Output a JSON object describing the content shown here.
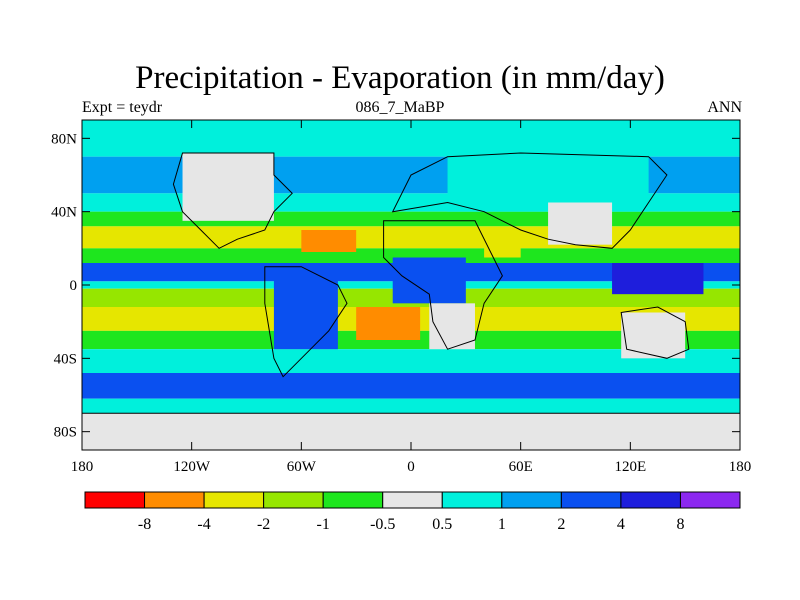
{
  "title": "Precipitation - Evaporation (in mm/day)",
  "left_string": "Expt = teydr",
  "center_string": "086_7_MaBP",
  "right_string": "ANN",
  "axes": {
    "x_ticks": [
      "180",
      "120W",
      "60W",
      "0",
      "60E",
      "120E",
      "180"
    ],
    "y_ticks": [
      "80N",
      "40N",
      "0",
      "40S",
      "80S"
    ]
  },
  "colorbar": {
    "colors": [
      "#ff0000",
      "#ff8c00",
      "#e6e600",
      "#96e600",
      "#1ee61e",
      "#e6e6e6",
      "#00f0dc",
      "#00a0f0",
      "#0a50f0",
      "#1e1edc",
      "#8c28f0"
    ],
    "labels": [
      "-8",
      "-4",
      "-2",
      "-1",
      "-0.5",
      "0.5",
      "1",
      "2",
      "4",
      "8"
    ]
  },
  "chart_data": {
    "type": "heatmap",
    "title": "Precipitation - Evaporation (in mm/day)",
    "subtitle": "086_7_MaBP",
    "variable": "P-E",
    "units": "mm/day",
    "experiment": "teydr",
    "period": "ANN",
    "xlabel": "",
    "ylabel": "",
    "x_range": [
      -180,
      180
    ],
    "y_range": [
      -90,
      90
    ],
    "levels": [
      -8,
      -4,
      -2,
      -1,
      -0.5,
      0.5,
      1,
      2,
      4,
      8
    ],
    "zonal_bands": [
      {
        "lat_from": 90,
        "lat_to": 70,
        "value": 0.8
      },
      {
        "lat_from": 70,
        "lat_to": 50,
        "value": 1.5
      },
      {
        "lat_from": 50,
        "lat_to": 40,
        "value": 0.6
      },
      {
        "lat_from": 40,
        "lat_to": 32,
        "value": -0.8
      },
      {
        "lat_from": 32,
        "lat_to": 20,
        "value": -2.5
      },
      {
        "lat_from": 20,
        "lat_to": 12,
        "value": -0.7
      },
      {
        "lat_from": 12,
        "lat_to": 2,
        "value": 3.0
      },
      {
        "lat_from": 2,
        "lat_to": -2,
        "value": 0.7
      },
      {
        "lat_from": -2,
        "lat_to": -12,
        "value": -1.5
      },
      {
        "lat_from": -12,
        "lat_to": -25,
        "value": -3.0
      },
      {
        "lat_from": -25,
        "lat_to": -35,
        "value": -0.7
      },
      {
        "lat_from": -35,
        "lat_to": -48,
        "value": 0.8
      },
      {
        "lat_from": -48,
        "lat_to": -62,
        "value": 2.0
      },
      {
        "lat_from": -62,
        "lat_to": -72,
        "value": 0.7
      },
      {
        "lat_from": -72,
        "lat_to": -90,
        "value": 0.3
      }
    ],
    "regions": [
      {
        "name": "north-america",
        "lon": [
          -125,
          -75
        ],
        "lat": [
          35,
          72
        ],
        "value": 0.3
      },
      {
        "name": "south-america",
        "lon": [
          -75,
          -40
        ],
        "lat": [
          -35,
          5
        ],
        "value": 3.0
      },
      {
        "name": "eurasia",
        "lon": [
          20,
          130
        ],
        "lat": [
          40,
          70
        ],
        "value": 0.8
      },
      {
        "name": "asia-interior",
        "lon": [
          75,
          110
        ],
        "lat": [
          22,
          45
        ],
        "value": 0.2
      },
      {
        "name": "arabia",
        "lon": [
          40,
          60
        ],
        "lat": [
          15,
          30
        ],
        "value": -3.0
      },
      {
        "name": "africa-tropics",
        "lon": [
          -10,
          30
        ],
        "lat": [
          -10,
          15
        ],
        "value": 2.5
      },
      {
        "name": "africa-south",
        "lon": [
          10,
          35
        ],
        "lat": [
          -35,
          -10
        ],
        "value": 0.2
      },
      {
        "name": "australia",
        "lon": [
          115,
          150
        ],
        "lat": [
          -40,
          -15
        ],
        "value": 0.2
      },
      {
        "name": "antarctica",
        "lon": [
          -180,
          180
        ],
        "lat": [
          -90,
          -70
        ],
        "value": 0.3
      },
      {
        "name": "west-pacific-warmpool",
        "lon": [
          110,
          160
        ],
        "lat": [
          -5,
          12
        ],
        "value": 5.0
      },
      {
        "name": "south-atlantic-dry",
        "lon": [
          -30,
          5
        ],
        "lat": [
          -30,
          -12
        ],
        "value": -4.5
      },
      {
        "name": "north-atlantic-dry",
        "lon": [
          -60,
          -30
        ],
        "lat": [
          18,
          30
        ],
        "value": -4.5
      }
    ]
  }
}
